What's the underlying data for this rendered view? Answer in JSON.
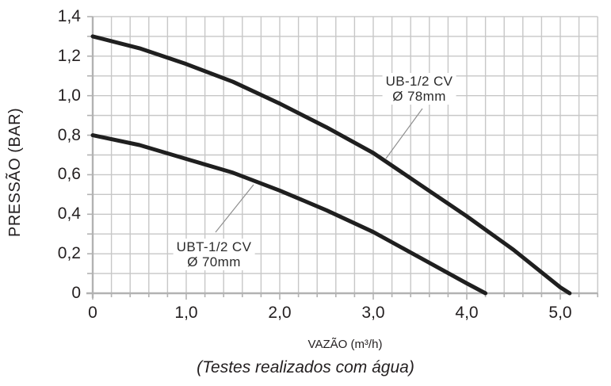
{
  "chart": {
    "y_axis": {
      "title": "PRESSÃO (BAR)",
      "ticks": [
        "0",
        "0,2",
        "0,4",
        "0,6",
        "0,8",
        "1,0",
        "1,2",
        "1,4"
      ],
      "tick_values": [
        0,
        0.2,
        0.4,
        0.6,
        0.8,
        1.0,
        1.2,
        1.4
      ]
    },
    "x_axis": {
      "title": "VAZÃO (m³/h)",
      "ticks": [
        "0",
        "1,0",
        "2,0",
        "3,0",
        "4,0",
        "5,0"
      ],
      "tick_values": [
        0,
        1,
        2,
        3,
        4,
        5
      ]
    },
    "caption": "(Testes realizados com água)",
    "annotations": {
      "ub": {
        "line1": "UB-1/2 CV",
        "line2": "Ø 78mm"
      },
      "ubt": {
        "line1": "UBT-1/2 CV",
        "line2": "Ø 70mm"
      }
    }
  },
  "chart_data": {
    "type": "line",
    "title": "",
    "xlabel": "VAZÃO (m³/h)",
    "ylabel": "PRESSÃO (BAR)",
    "caption": "(Testes realizados com água)",
    "xlim": [
      0,
      5.4
    ],
    "ylim": [
      0,
      1.4
    ],
    "x_minor_step": 0.2,
    "y_minor_step": 0.1,
    "grid": true,
    "legend_position": "inline-annotations",
    "series": [
      {
        "name": "UB-1/2 CV Ø 78mm",
        "x": [
          0,
          0.5,
          1.0,
          1.5,
          2.0,
          2.5,
          3.0,
          3.5,
          4.0,
          4.5,
          5.0,
          5.1
        ],
        "y": [
          1.3,
          1.24,
          1.16,
          1.07,
          0.96,
          0.84,
          0.71,
          0.55,
          0.39,
          0.22,
          0.03,
          0.0
        ]
      },
      {
        "name": "UBT-1/2 CV Ø 70mm",
        "x": [
          0,
          0.5,
          1.0,
          1.5,
          2.0,
          2.5,
          3.0,
          3.5,
          4.0,
          4.2
        ],
        "y": [
          0.8,
          0.75,
          0.68,
          0.61,
          0.52,
          0.42,
          0.31,
          0.18,
          0.05,
          0.0
        ]
      }
    ]
  },
  "colors": {
    "curve": "#1f1f1f",
    "grid": "#c7c7c7",
    "axis": "#b2b2b2",
    "leader": "#8f8f8f",
    "text": "#231f20"
  }
}
